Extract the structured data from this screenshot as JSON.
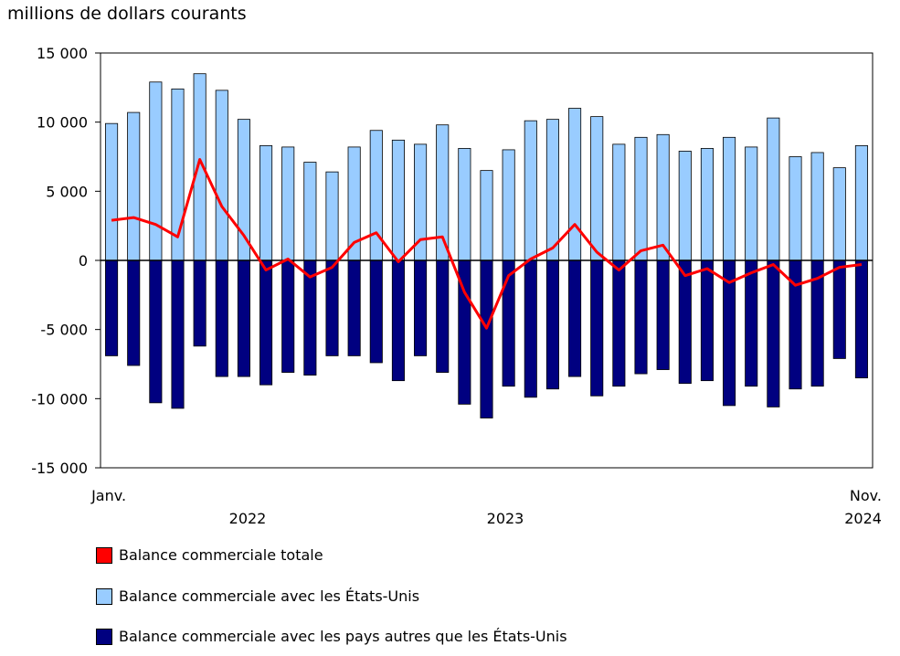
{
  "chart_data": {
    "type": "bar",
    "ylabel": "millions de dollars courants",
    "ylim": [
      -15000,
      15000
    ],
    "yticks": [
      15000,
      10000,
      5000,
      0,
      -5000,
      -10000,
      -15000
    ],
    "ytick_labels": [
      "15 000",
      "10 000",
      "5 000",
      "0",
      "-5 000",
      "-10 000",
      "-15 000"
    ],
    "x_start_label": "Janv.",
    "x_end_label": "Nov.",
    "year_labels": [
      "2022",
      "2023",
      "2024"
    ],
    "categories": [
      "2022-01",
      "2022-02",
      "2022-03",
      "2022-04",
      "2022-05",
      "2022-06",
      "2022-07",
      "2022-08",
      "2022-09",
      "2022-10",
      "2022-11",
      "2022-12",
      "2023-01",
      "2023-02",
      "2023-03",
      "2023-04",
      "2023-05",
      "2023-06",
      "2023-07",
      "2023-08",
      "2023-09",
      "2023-10",
      "2023-11",
      "2023-12",
      "2024-01",
      "2024-02",
      "2024-03",
      "2024-04",
      "2024-05",
      "2024-06",
      "2024-07",
      "2024-08",
      "2024-09",
      "2024-10",
      "2024-11"
    ],
    "series": [
      {
        "name": "Balance commerciale totale",
        "type": "line",
        "color": "#ff0000",
        "values": [
          2900,
          3100,
          2600,
          1700,
          7300,
          3900,
          1800,
          -700,
          100,
          -1200,
          -500,
          1300,
          2000,
          -100,
          1500,
          1700,
          -2300,
          -4900,
          -1100,
          100,
          900,
          2600,
          600,
          -700,
          700,
          1100,
          -1100,
          -600,
          -1600,
          -900,
          -300,
          -1800,
          -1300,
          -500,
          -300
        ]
      },
      {
        "name": "Balance commerciale avec les États-Unis",
        "type": "bar",
        "color": "#99ccff",
        "values": [
          9900,
          10700,
          12900,
          12400,
          13500,
          12300,
          10200,
          8300,
          8200,
          7100,
          6400,
          8200,
          9400,
          8700,
          8400,
          9800,
          8100,
          6500,
          8000,
          10100,
          10200,
          11000,
          10400,
          8400,
          8900,
          9100,
          7900,
          8100,
          8900,
          8200,
          10300,
          7500,
          7800,
          6700,
          8300
        ]
      },
      {
        "name": "Balance commerciale avec les pays autres que les États-Unis",
        "type": "bar",
        "color": "#000080",
        "values": [
          -6900,
          -7600,
          -10300,
          -10700,
          -6200,
          -8400,
          -8400,
          -9000,
          -8100,
          -8300,
          -6900,
          -6900,
          -7400,
          -8700,
          -6900,
          -8100,
          -10400,
          -11400,
          -9100,
          -9900,
          -9300,
          -8400,
          -9800,
          -9100,
          -8200,
          -7900,
          -8900,
          -8700,
          -10500,
          -9100,
          -10600,
          -9300,
          -9100,
          -7100,
          -8500
        ]
      }
    ],
    "grid": false,
    "legend_position": "bottom"
  }
}
